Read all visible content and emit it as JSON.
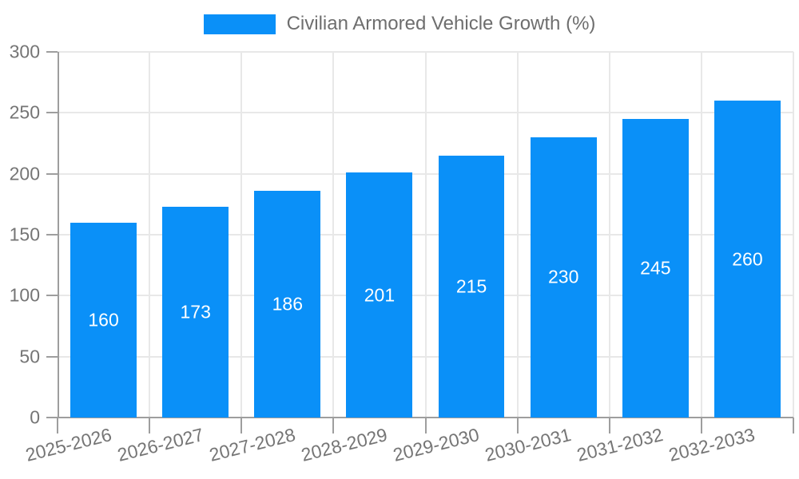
{
  "legend": {
    "label": "Civilian Armored Vehicle Growth (%)"
  },
  "chart_data": {
    "type": "bar",
    "title": "Civilian Armored Vehicle Growth (%)",
    "categories": [
      "2025-2026",
      "2026-2027",
      "2027-2028",
      "2028-2029",
      "2029-2030",
      "2030-2031",
      "2031-2032",
      "2032-2033"
    ],
    "values": [
      160,
      173,
      186,
      201,
      215,
      230,
      245,
      260
    ],
    "xlabel": "",
    "ylabel": "",
    "ylim": [
      0,
      300
    ],
    "yticks": [
      0,
      50,
      100,
      150,
      200,
      250,
      300
    ],
    "grid": true,
    "legend_position": "top",
    "bar_labels_inside": true
  },
  "colors": {
    "bar": "#0a90f8",
    "grid": "#e8e8e8",
    "axis": "#9e9e9e",
    "tick_text": "#757575",
    "legend_text": "#6e6e6e",
    "bar_label": "#ffffff",
    "background": "#ffffff"
  }
}
